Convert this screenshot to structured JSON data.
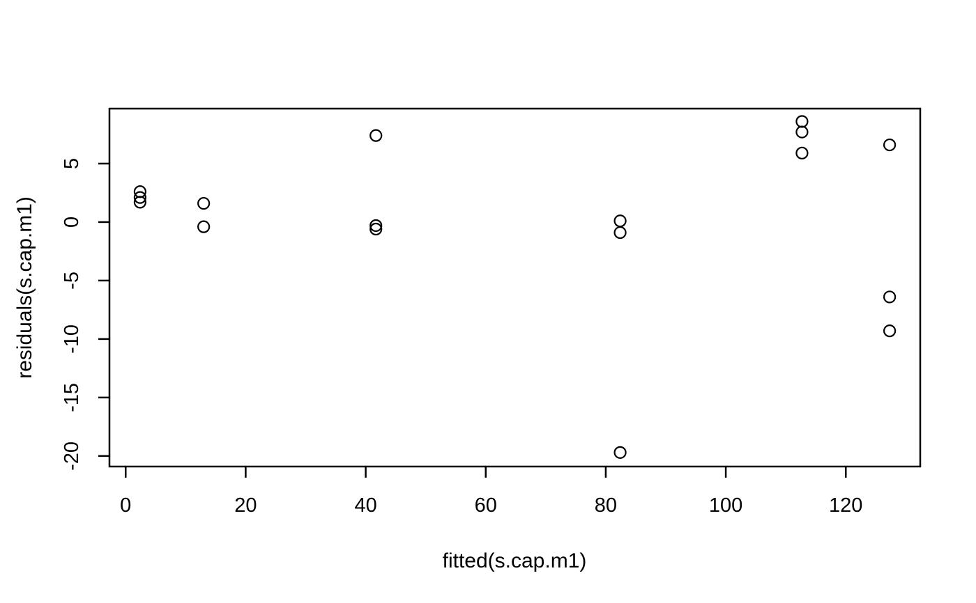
{
  "figure": {
    "background": "#ffffff",
    "foreground": "#000000"
  },
  "chart_data": {
    "type": "scatter",
    "title": "",
    "xlabel": "fitted(s.cap.m1)",
    "ylabel": "residuals(s.cap.m1)",
    "xlim": [
      -2.7,
      132.4
    ],
    "ylim": [
      -20.9,
      9.7
    ],
    "x_ticks": [
      0,
      20,
      40,
      60,
      80,
      100,
      120
    ],
    "y_ticks": [
      -20,
      -15,
      -10,
      -5,
      0,
      5
    ],
    "grid": false,
    "legend": false,
    "marker": "open-circle",
    "marker_color": "#000000",
    "points": [
      {
        "x": 2.4,
        "y": 2.6
      },
      {
        "x": 2.4,
        "y": 2.1
      },
      {
        "x": 2.4,
        "y": 1.7
      },
      {
        "x": 13.0,
        "y": 1.6
      },
      {
        "x": 13.0,
        "y": -0.4
      },
      {
        "x": 41.7,
        "y": 7.4
      },
      {
        "x": 41.7,
        "y": -0.3
      },
      {
        "x": 41.7,
        "y": -0.6
      },
      {
        "x": 82.4,
        "y": 0.1
      },
      {
        "x": 82.4,
        "y": -0.9
      },
      {
        "x": 82.4,
        "y": -19.7
      },
      {
        "x": 112.7,
        "y": 8.6
      },
      {
        "x": 112.7,
        "y": 7.7
      },
      {
        "x": 112.7,
        "y": 5.9
      },
      {
        "x": 127.3,
        "y": 6.6
      },
      {
        "x": 127.3,
        "y": -6.4
      },
      {
        "x": 127.3,
        "y": -9.3
      }
    ]
  }
}
